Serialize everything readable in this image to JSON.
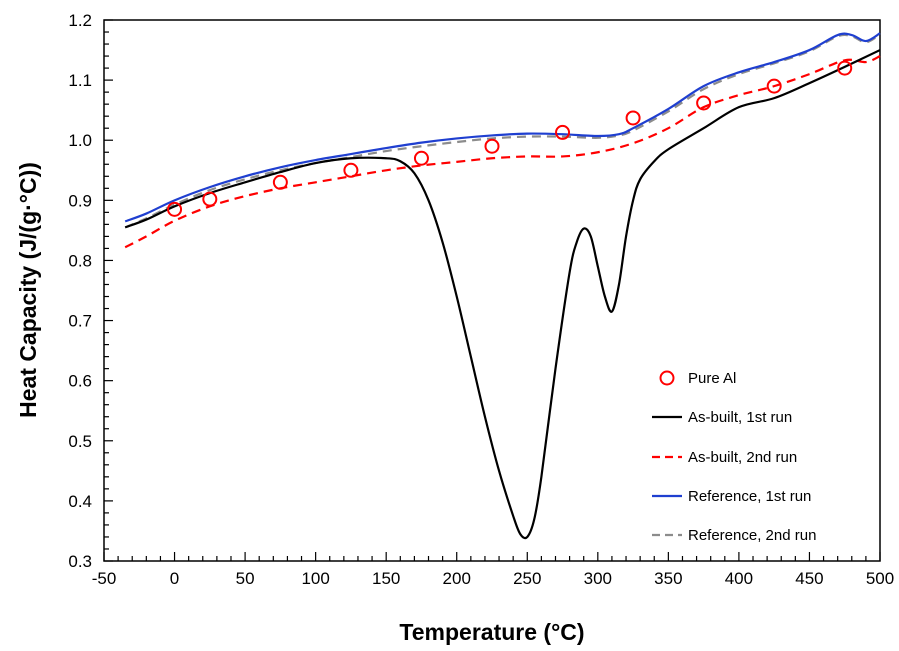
{
  "chart_data": {
    "type": "line",
    "xlabel": "Temperature (°C)",
    "ylabel": "Heat Capacity (J/(g·°C))",
    "xlim": [
      -50,
      500
    ],
    "ylim": [
      0.3,
      1.2
    ],
    "x_ticks": [
      "-50",
      "0",
      "50",
      "100",
      "150",
      "200",
      "250",
      "300",
      "350",
      "400",
      "450",
      "500"
    ],
    "y_ticks": [
      "0.3",
      "0.4",
      "0.5",
      "0.6",
      "0.7",
      "0.8",
      "0.9",
      "1.0",
      "1.1",
      "1.2"
    ],
    "grid": false,
    "legend_position": "bottom-right",
    "series": [
      {
        "name": "Pure Al",
        "style": "markers",
        "color": "#ff0000",
        "x": [
          0,
          25,
          75,
          125,
          175,
          225,
          275,
          325,
          375,
          425,
          475
        ],
        "y": [
          0.885,
          0.902,
          0.93,
          0.95,
          0.97,
          0.99,
          1.013,
          1.037,
          1.062,
          1.09,
          1.12
        ]
      },
      {
        "name": "As-built, 1st run",
        "style": "solid",
        "color": "#000000",
        "x": [
          -35,
          -20,
          0,
          25,
          50,
          75,
          100,
          125,
          150,
          160,
          170,
          180,
          190,
          200,
          210,
          220,
          230,
          240,
          245,
          250,
          255,
          260,
          270,
          280,
          285,
          290,
          295,
          300,
          305,
          310,
          315,
          320,
          325,
          330,
          340,
          350,
          375,
          400,
          425,
          450,
          475,
          500
        ],
        "y": [
          0.855,
          0.868,
          0.89,
          0.912,
          0.93,
          0.947,
          0.962,
          0.97,
          0.97,
          0.965,
          0.945,
          0.9,
          0.83,
          0.74,
          0.64,
          0.54,
          0.45,
          0.375,
          0.345,
          0.34,
          0.37,
          0.44,
          0.62,
          0.78,
          0.83,
          0.853,
          0.84,
          0.79,
          0.74,
          0.715,
          0.76,
          0.84,
          0.9,
          0.935,
          0.965,
          0.985,
          1.02,
          1.055,
          1.07,
          1.095,
          1.122,
          1.15
        ]
      },
      {
        "name": "As-built, 2nd run",
        "style": "dashed",
        "color": "#ff0000",
        "x": [
          -35,
          -20,
          0,
          25,
          50,
          75,
          100,
          125,
          150,
          175,
          200,
          225,
          250,
          275,
          300,
          325,
          350,
          375,
          400,
          425,
          450,
          475,
          490,
          500
        ],
        "y": [
          0.822,
          0.84,
          0.866,
          0.89,
          0.907,
          0.92,
          0.93,
          0.94,
          0.95,
          0.958,
          0.964,
          0.97,
          0.973,
          0.973,
          0.98,
          0.995,
          1.02,
          1.055,
          1.075,
          1.09,
          1.11,
          1.133,
          1.13,
          1.14
        ]
      },
      {
        "name": "Reference, 1st run",
        "style": "solid",
        "color": "#1f3fd0",
        "x": [
          -35,
          -20,
          0,
          25,
          50,
          75,
          100,
          125,
          150,
          175,
          200,
          225,
          250,
          275,
          300,
          315,
          325,
          350,
          375,
          400,
          425,
          450,
          470,
          480,
          490,
          500
        ],
        "y": [
          0.865,
          0.878,
          0.9,
          0.922,
          0.94,
          0.955,
          0.967,
          0.977,
          0.987,
          0.996,
          1.003,
          1.008,
          1.011,
          1.01,
          1.007,
          1.01,
          1.02,
          1.052,
          1.09,
          1.113,
          1.13,
          1.15,
          1.175,
          1.175,
          1.165,
          1.178
        ]
      },
      {
        "name": "Reference, 2nd run",
        "style": "dashed",
        "color": "#8c8c8c",
        "x": [
          -35,
          -20,
          0,
          25,
          50,
          75,
          100,
          125,
          150,
          175,
          200,
          225,
          250,
          275,
          300,
          315,
          325,
          350,
          375,
          400,
          425,
          450,
          470,
          480,
          490,
          500
        ],
        "y": [
          0.855,
          0.87,
          0.893,
          0.917,
          0.935,
          0.95,
          0.962,
          0.972,
          0.982,
          0.99,
          0.997,
          1.003,
          1.006,
          1.006,
          1.004,
          1.008,
          1.016,
          1.048,
          1.085,
          1.11,
          1.128,
          1.148,
          1.173,
          1.173,
          1.163,
          1.176
        ]
      }
    ]
  }
}
